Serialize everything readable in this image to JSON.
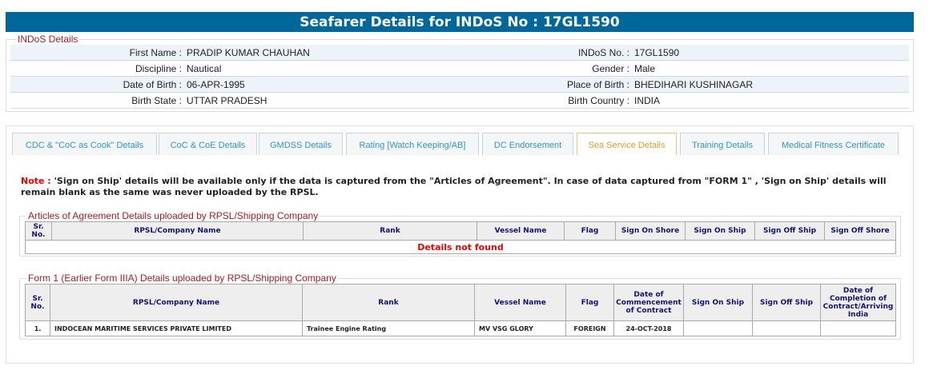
{
  "title": "Seafarer Details for INDoS No : 17GL1590",
  "indos": {
    "legend": "INDoS Details",
    "rows": [
      {
        "l1": "First Name :",
        "v1": "PRADIP KUMAR CHAUHAN",
        "l2": "INDoS No. :",
        "v2": "17GL1590"
      },
      {
        "l1": "Discipline :",
        "v1": "Nautical",
        "l2": "Gender :",
        "v2": "Male"
      },
      {
        "l1": "Date of Birth :",
        "v1": "06-APR-1995",
        "l2": "Place of Birth :",
        "v2": "BHEDIHARI KUSHINAGAR"
      },
      {
        "l1": "Birth State :",
        "v1": "UTTAR PRADESH",
        "l2": "Birth Country :",
        "v2": "INDIA"
      }
    ]
  },
  "tabs": [
    "CDC & \"CoC as Cook\" Details",
    "CoC & CoE Details",
    "GMDSS Details",
    "Rating [Watch Keeping/AB]",
    "DC Endorsement",
    "Sea Service Details",
    "Training Details",
    "Medical Fitness Certificate"
  ],
  "active_tab": "Sea Service Details",
  "note": {
    "label": "Note :",
    "text": " 'Sign on Ship' details will be available only if the data is captured from the \"Articles of Agreement\". In case of data captured from \"FORM 1\" , 'Sign on Ship' details will remain blank as the same was never uploaded by the RPSL."
  },
  "articles": {
    "legend": "Articles of Agreement Details uploaded by RPSL/Shipping Company",
    "headers": [
      "Sr. No.",
      "RPSL/Company Name",
      "Rank",
      "Vessel Name",
      "Flag",
      "Sign On Shore",
      "Sign On Ship",
      "Sign Off Ship",
      "Sign Off Shore"
    ],
    "empty": "Details not found"
  },
  "form1": {
    "legend": "Form 1 (Earlier Form IIIA) Details uploaded by RPSL/Shipping Company",
    "headers": [
      "Sr. No.",
      "RPSL/Company Name",
      "Rank",
      "Vessel Name",
      "Flag",
      "Date of Commencement of Contract",
      "Sign On Ship",
      "Sign Off Ship",
      "Date of Completion of Contract/Arriving India"
    ],
    "rows": [
      [
        "1.",
        "INDOCEAN MARITIME SERVICES PRIVATE LIMITED",
        "Trainee Engine Rating",
        "MV VSG GLORY",
        "FOREIGN",
        "24-OCT-2018",
        "",
        "",
        ""
      ]
    ]
  }
}
